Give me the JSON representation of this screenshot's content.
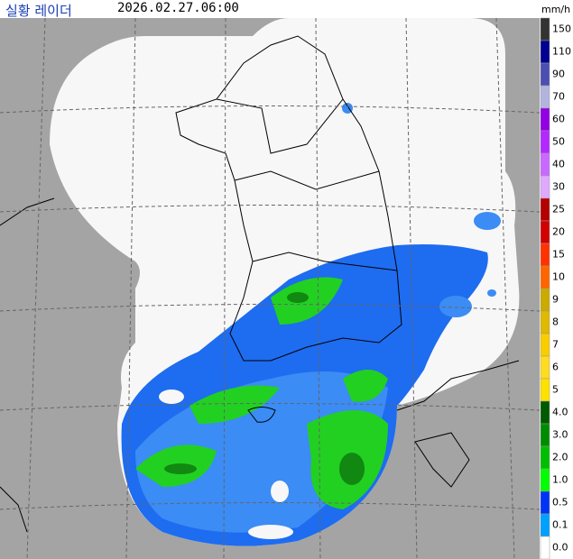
{
  "header": {
    "title": "실황 레이더",
    "time": "2026.02.27.06:00",
    "unit": "mm/h"
  },
  "legend": {
    "items": [
      {
        "label": "150",
        "color": "#333333"
      },
      {
        "label": "110",
        "color": "#000390"
      },
      {
        "label": "90",
        "color": "#4c4eb1"
      },
      {
        "label": "70",
        "color": "#b3b4de"
      },
      {
        "label": "60",
        "color": "#9300e4"
      },
      {
        "label": "50",
        "color": "#b329ff"
      },
      {
        "label": "40",
        "color": "#c969ff"
      },
      {
        "label": "30",
        "color": "#e0a9ff"
      },
      {
        "label": "25",
        "color": "#b40000"
      },
      {
        "label": "20",
        "color": "#d20000"
      },
      {
        "label": "15",
        "color": "#ff3200"
      },
      {
        "label": "10",
        "color": "#ff6600"
      },
      {
        "label": "9",
        "color": "#ccaa00"
      },
      {
        "label": "8",
        "color": "#e0b900"
      },
      {
        "label": "7",
        "color": "#f9cd00"
      },
      {
        "label": "6",
        "color": "#ffdc1f"
      },
      {
        "label": "5",
        "color": "#ffe100"
      },
      {
        "label": "4.0",
        "color": "#005a00"
      },
      {
        "label": "3.0",
        "color": "#008c00"
      },
      {
        "label": "2.0",
        "color": "#00be00"
      },
      {
        "label": "1.0",
        "color": "#00ff00"
      },
      {
        "label": "0.5",
        "color": "#0033f5"
      },
      {
        "label": "0.1",
        "color": "#00a0ff"
      },
      {
        "label": "0.0",
        "color": "#ffffff"
      }
    ]
  }
}
